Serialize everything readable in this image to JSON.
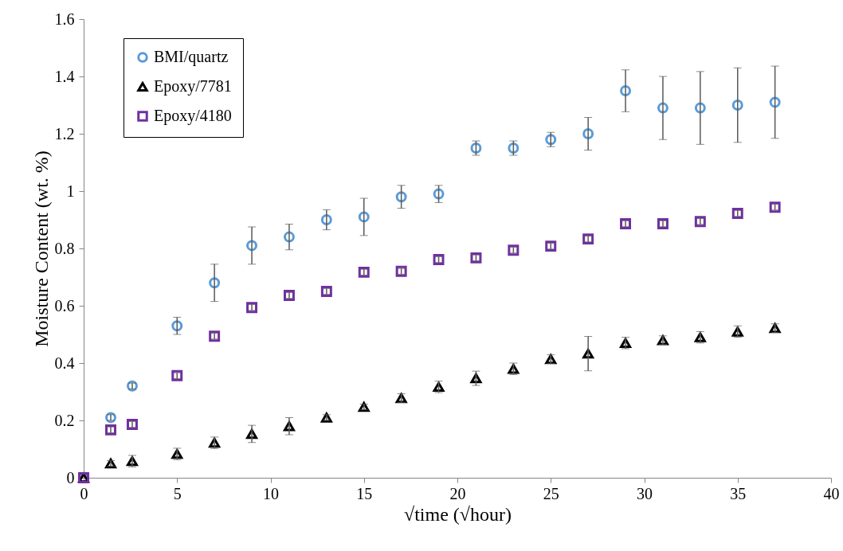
{
  "chart_data": {
    "type": "scatter",
    "xlabel": "√time (√hour)",
    "ylabel": "Moisture Content (wt. %)",
    "x": [
      0,
      1.45,
      2.6,
      5,
      7,
      9,
      11,
      13,
      15,
      17,
      19,
      21,
      23,
      25,
      27,
      29,
      31,
      33,
      35,
      37
    ],
    "xlim": [
      0,
      40
    ],
    "xticks": [
      0,
      5,
      10,
      15,
      20,
      25,
      30,
      35,
      40
    ],
    "ylim": [
      0,
      1.6
    ],
    "yticks": [
      0,
      0.2,
      0.4,
      0.6,
      0.8,
      1,
      1.2,
      1.4,
      1.6
    ],
    "legend": "top left",
    "grid": false,
    "series": [
      {
        "name": "BMI/quartz",
        "color": "#5b9bd5",
        "marker": "circle",
        "values": [
          0,
          0.21,
          0.32,
          0.53,
          0.68,
          0.81,
          0.84,
          0.9,
          0.91,
          0.98,
          0.99,
          1.15,
          1.15,
          1.18,
          1.2,
          1.35,
          1.29,
          1.29,
          1.3,
          1.31
        ],
        "errors": [
          null,
          0.01,
          0.01,
          0.03,
          0.065,
          0.065,
          0.045,
          0.035,
          0.065,
          0.04,
          0.03,
          0.025,
          0.025,
          0.025,
          0.057,
          0.073,
          0.11,
          0.127,
          0.13,
          0.126
        ]
      },
      {
        "name": "Epoxy/7781",
        "color": "#000000",
        "marker": "triangle",
        "values": [
          0,
          0.05,
          0.058,
          0.083,
          0.122,
          0.153,
          0.18,
          0.21,
          0.247,
          0.278,
          0.317,
          0.347,
          0.38,
          0.414,
          0.433,
          0.47,
          0.48,
          0.49,
          0.51,
          0.522
        ],
        "errors": [
          null,
          0.01,
          0.02,
          0.02,
          0.02,
          0.03,
          0.03,
          0.01,
          0.01,
          0.015,
          0.02,
          0.025,
          0.02,
          0.015,
          0.06,
          0.02,
          0.015,
          0.02,
          0.02,
          0.015
        ]
      },
      {
        "name": "Epoxy/4180",
        "color": "#7030a0",
        "marker": "square",
        "values": [
          0,
          0.167,
          0.186,
          0.356,
          0.494,
          0.594,
          0.636,
          0.65,
          0.717,
          0.72,
          0.761,
          0.767,
          0.794,
          0.808,
          0.833,
          0.886,
          0.886,
          0.894,
          0.922,
          0.944
        ],
        "errors": [
          null,
          0.01,
          0.01,
          0.01,
          0.01,
          0.01,
          0.01,
          0.01,
          0.01,
          0.01,
          0.01,
          0.01,
          0.01,
          0.01,
          0.01,
          0.01,
          0.01,
          0.01,
          0.01,
          0.01
        ]
      }
    ]
  }
}
